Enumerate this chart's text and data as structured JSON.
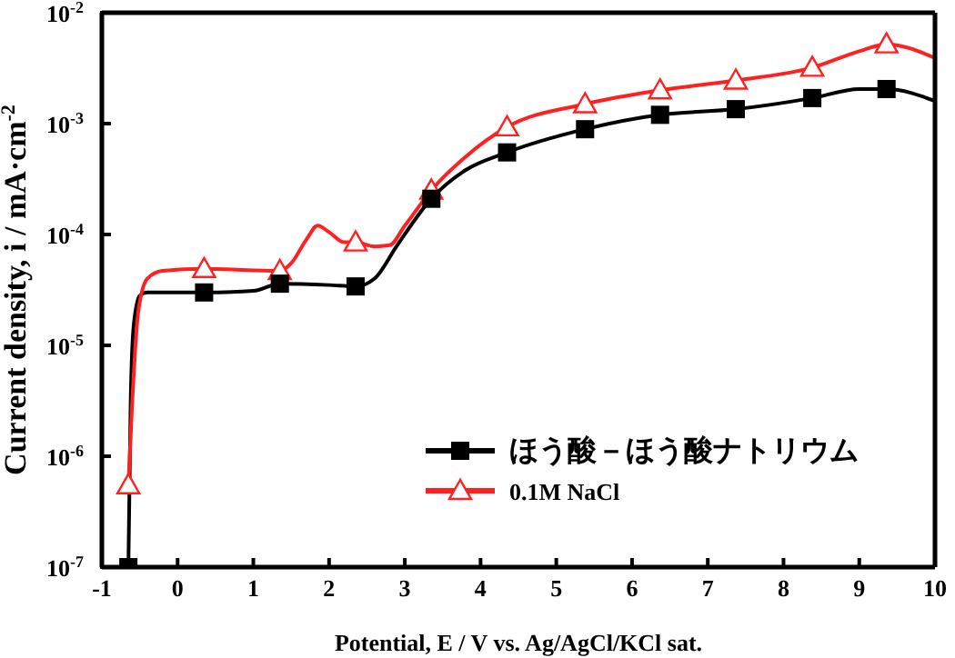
{
  "chart_data": {
    "type": "line",
    "xlabel": "Potential, E / V vs. Ag/AgCl/KCl sat.",
    "ylabel": "Current density, i / mA·cm$^{-2}$",
    "log": "y",
    "xlim": [
      -1,
      10
    ],
    "xticks": [
      -1,
      0,
      1,
      2,
      3,
      4,
      5,
      6,
      7,
      8,
      9,
      10
    ],
    "ylim": [
      1e-07,
      0.01
    ],
    "yticks": [
      {
        "value": 1e-07,
        "label": "10$^{-7}$"
      },
      {
        "value": 1e-06,
        "label": "10$^{-6}$"
      },
      {
        "value": 1e-05,
        "label": "10$^{-5}$"
      },
      {
        "value": 0.0001,
        "label": "10$^{-4}$"
      },
      {
        "value": 0.001,
        "label": "10$^{-3}$"
      },
      {
        "value": 0.01,
        "label": "10$^{-2}$"
      }
    ],
    "grid": false,
    "legend": "bottom right",
    "line_style": "solid",
    "series": [
      {
        "name": "ほう酸－ほう酸ナトリウム",
        "marker": "none",
        "color": "#000000",
        "x": [
          -0.65,
          -0.62,
          -0.58,
          -0.5,
          -0.4,
          0.35,
          1.0,
          1.35,
          2.0,
          2.35,
          2.6,
          2.9,
          3.35,
          3.8,
          4.35,
          5.38,
          6.37,
          7.37,
          8.38,
          9.0,
          9.36,
          10
        ],
        "values": [
          1e-07,
          3e-06,
          1.5e-05,
          2.8e-05,
          3e-05,
          3e-05,
          3.1e-05,
          3.6e-05,
          3.5e-05,
          3.4e-05,
          4e-05,
          8e-05,
          0.00021,
          0.00038,
          0.00055,
          0.00089,
          0.0012,
          0.00135,
          0.0017,
          0.00205,
          0.00205,
          0.0016
        ]
      },
      {
        "type": "scatter",
        "marker": "square",
        "color": "#000000",
        "x": [
          -0.65,
          0.35,
          1.35,
          2.35,
          3.35,
          4.35,
          5.38,
          6.37,
          7.37,
          8.38,
          9.36
        ],
        "values": [
          1e-07,
          3e-05,
          3.6e-05,
          3.4e-05,
          0.00021,
          0.00055,
          0.00089,
          0.0012,
          0.00135,
          0.0017,
          0.00205
        ]
      },
      {
        "name": "0.1M NaCl",
        "marker": "none",
        "color": "#ff2020",
        "x": [
          -0.65,
          -0.6,
          -0.52,
          -0.4,
          -0.2,
          0.35,
          1.35,
          1.5,
          1.7,
          1.85,
          2.0,
          2.2,
          2.35,
          2.6,
          2.8,
          3.0,
          3.35,
          3.8,
          4.35,
          5.38,
          6.37,
          7.37,
          8.38,
          9.0,
          9.36,
          10
        ],
        "values": [
          5.5e-07,
          3e-06,
          2e-05,
          4e-05,
          4.7e-05,
          4.9e-05,
          4.7e-05,
          5.5e-05,
          9e-05,
          0.00012,
          0.000105,
          8.5e-05,
          8.5e-05,
          7.8e-05,
          8e-05,
          0.00012,
          0.00025,
          0.0005,
          0.00093,
          0.0015,
          0.002,
          0.00245,
          0.0032,
          0.0045,
          0.0052,
          0.0039
        ]
      },
      {
        "type": "scatter",
        "marker": "triangle",
        "color": "#ff2020",
        "x": [
          -0.65,
          0.35,
          1.35,
          2.35,
          3.35,
          4.35,
          5.38,
          6.37,
          7.37,
          8.38,
          9.36
        ],
        "values": [
          5.5e-07,
          4.9e-05,
          4.7e-05,
          8.5e-05,
          0.00025,
          0.00093,
          0.0015,
          0.002,
          0.00245,
          0.0032,
          0.0052
        ]
      }
    ]
  }
}
